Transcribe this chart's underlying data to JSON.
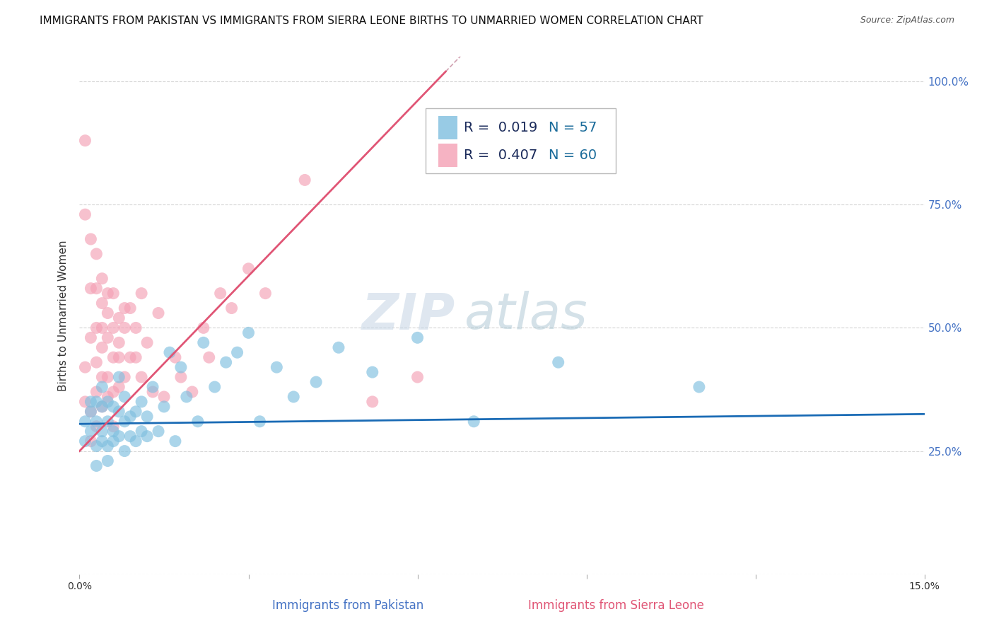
{
  "title": "IMMIGRANTS FROM PAKISTAN VS IMMIGRANTS FROM SIERRA LEONE BIRTHS TO UNMARRIED WOMEN CORRELATION CHART",
  "source": "Source: ZipAtlas.com",
  "xlabel_pakistan": "Immigrants from Pakistan",
  "xlabel_sierraleone": "Immigrants from Sierra Leone",
  "ylabel": "Births to Unmarried Women",
  "xlim": [
    0.0,
    0.15
  ],
  "ylim": [
    0.05,
    1.05
  ],
  "yticks": [
    0.0,
    0.25,
    0.5,
    0.75,
    1.0
  ],
  "yticklabels": [
    "",
    "25.0%",
    "50.0%",
    "75.0%",
    "100.0%"
  ],
  "pakistan_color": "#7fbfdf",
  "sierraleone_color": "#f4a0b5",
  "pakistan_line_color": "#1a6bb5",
  "sierraleone_line_color": "#e05575",
  "sierraleone_dash_color": "#d0a0b0",
  "watermark_zip": "ZIP",
  "watermark_atlas": "atlas",
  "watermark_zip_color": "#c8d8e8",
  "watermark_atlas_color": "#a0b8d0",
  "legend_R_pakistan": "R =  0.019",
  "legend_N_pakistan": "N = 57",
  "legend_R_sierraleone": "R =  0.407",
  "legend_N_sierraleone": "N = 60",
  "background_color": "#ffffff",
  "grid_color": "#cccccc",
  "title_fontsize": 11,
  "label_fontsize": 11,
  "tick_fontsize": 10,
  "legend_fontsize": 14,
  "legend_color_R": "#1a2a5a",
  "legend_color_N": "#1a6b9a",
  "pakistan_x": [
    0.001,
    0.001,
    0.002,
    0.002,
    0.002,
    0.003,
    0.003,
    0.003,
    0.003,
    0.004,
    0.004,
    0.004,
    0.004,
    0.005,
    0.005,
    0.005,
    0.005,
    0.006,
    0.006,
    0.006,
    0.007,
    0.007,
    0.007,
    0.008,
    0.008,
    0.008,
    0.009,
    0.009,
    0.01,
    0.01,
    0.011,
    0.011,
    0.012,
    0.012,
    0.013,
    0.014,
    0.015,
    0.016,
    0.017,
    0.018,
    0.019,
    0.021,
    0.022,
    0.024,
    0.026,
    0.028,
    0.03,
    0.032,
    0.035,
    0.038,
    0.042,
    0.046,
    0.052,
    0.06,
    0.07,
    0.085,
    0.11
  ],
  "pakistan_y": [
    0.31,
    0.27,
    0.33,
    0.29,
    0.35,
    0.26,
    0.31,
    0.35,
    0.22,
    0.29,
    0.34,
    0.27,
    0.38,
    0.26,
    0.31,
    0.35,
    0.23,
    0.29,
    0.34,
    0.27,
    0.28,
    0.33,
    0.4,
    0.25,
    0.31,
    0.36,
    0.28,
    0.32,
    0.27,
    0.33,
    0.29,
    0.35,
    0.28,
    0.32,
    0.38,
    0.29,
    0.34,
    0.45,
    0.27,
    0.42,
    0.36,
    0.31,
    0.47,
    0.38,
    0.43,
    0.45,
    0.49,
    0.31,
    0.42,
    0.36,
    0.39,
    0.46,
    0.41,
    0.48,
    0.31,
    0.43,
    0.38
  ],
  "sierraleone_x": [
    0.001,
    0.001,
    0.001,
    0.001,
    0.002,
    0.002,
    0.002,
    0.002,
    0.002,
    0.003,
    0.003,
    0.003,
    0.003,
    0.003,
    0.003,
    0.004,
    0.004,
    0.004,
    0.004,
    0.004,
    0.004,
    0.005,
    0.005,
    0.005,
    0.005,
    0.005,
    0.006,
    0.006,
    0.006,
    0.006,
    0.006,
    0.007,
    0.007,
    0.007,
    0.007,
    0.008,
    0.008,
    0.008,
    0.009,
    0.009,
    0.01,
    0.01,
    0.011,
    0.011,
    0.012,
    0.013,
    0.014,
    0.015,
    0.017,
    0.018,
    0.02,
    0.022,
    0.023,
    0.025,
    0.027,
    0.03,
    0.033,
    0.04,
    0.052,
    0.06
  ],
  "sierraleone_y": [
    0.88,
    0.73,
    0.42,
    0.35,
    0.68,
    0.58,
    0.48,
    0.33,
    0.27,
    0.58,
    0.5,
    0.43,
    0.65,
    0.37,
    0.3,
    0.55,
    0.46,
    0.5,
    0.4,
    0.6,
    0.34,
    0.48,
    0.53,
    0.4,
    0.57,
    0.36,
    0.5,
    0.44,
    0.57,
    0.37,
    0.3,
    0.52,
    0.44,
    0.38,
    0.47,
    0.5,
    0.54,
    0.4,
    0.44,
    0.54,
    0.5,
    0.44,
    0.57,
    0.4,
    0.47,
    0.37,
    0.53,
    0.36,
    0.44,
    0.4,
    0.37,
    0.5,
    0.44,
    0.57,
    0.54,
    0.62,
    0.57,
    0.8,
    0.35,
    0.4
  ],
  "sl_line_x0": 0.0,
  "sl_line_y0": 0.25,
  "sl_line_x1": 0.065,
  "sl_line_y1": 1.02,
  "pak_line_x0": 0.0,
  "pak_line_y0": 0.305,
  "pak_line_x1": 0.15,
  "pak_line_y1": 0.325
}
